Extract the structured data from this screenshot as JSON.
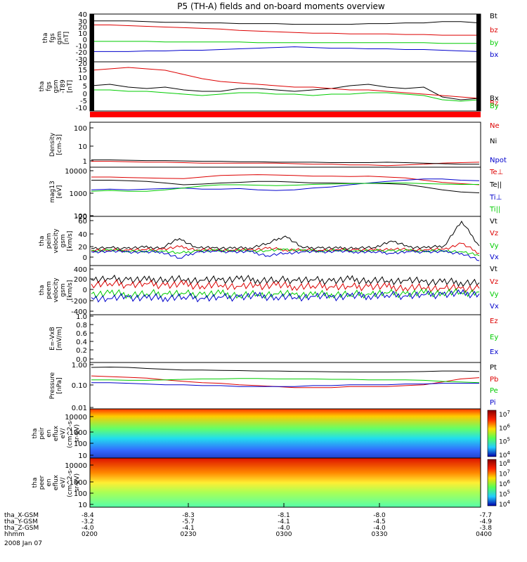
{
  "title": "P5 (TH-A) fields and on-board moments overview",
  "colors": {
    "black": "#000000",
    "red": "#dd0000",
    "green": "#00cc00",
    "blue": "#0000cc",
    "red_bar": "#ff0000"
  },
  "chart_data": [
    {
      "type": "line",
      "ylabel": [
        "tha",
        "fgs",
        "gsm",
        "[nT]"
      ],
      "ylim": [
        -30,
        40
      ],
      "ticks": [
        "40",
        "30",
        "20",
        "10",
        "0",
        "-10",
        "-20",
        "-30"
      ],
      "series": [
        {
          "name": "Bt",
          "color": "#000000",
          "values": [
            30,
            30,
            30,
            29,
            28,
            28,
            27,
            27,
            26,
            26,
            26,
            25,
            25,
            25,
            25,
            26,
            26,
            27,
            27,
            29,
            29,
            27
          ]
        },
        {
          "name": "bz",
          "color": "#dd0000",
          "values": [
            24,
            24,
            23,
            22,
            21,
            20,
            19,
            18,
            16,
            15,
            14,
            13,
            12,
            12,
            11,
            11,
            11,
            10,
            10,
            9,
            9,
            9
          ]
        },
        {
          "name": "by",
          "color": "#00cc00",
          "values": [
            0,
            0,
            0,
            0,
            -1,
            -1,
            -1,
            -1,
            -1,
            -2,
            -2,
            -2,
            -2,
            -2,
            -2,
            -2,
            -2,
            -2,
            -2,
            -3,
            -3,
            -3
          ]
        },
        {
          "name": "bx",
          "color": "#0000cc",
          "values": [
            -15,
            -15,
            -15,
            -14,
            -14,
            -13,
            -13,
            -12,
            -11,
            -10,
            -9,
            -8,
            -9,
            -10,
            -10,
            -11,
            -11,
            -12,
            -12,
            -13,
            -14,
            -15
          ]
        }
      ]
    },
    {
      "type": "line",
      "ylabel": [
        "tha",
        "fgs",
        "gsm",
        "-T89",
        "[nT]"
      ],
      "ylim": [
        -15,
        20
      ],
      "ticks": [
        "20",
        "15",
        "10",
        "5",
        "0",
        "-5",
        "-10"
      ],
      "series": [
        {
          "name": "Bx",
          "color": "#000000",
          "values": [
            3,
            4,
            2,
            1,
            2,
            0,
            -1,
            -1,
            1,
            1,
            0,
            -1,
            0,
            1,
            3,
            4,
            2,
            1,
            2,
            -5,
            -7,
            -6
          ]
        },
        {
          "name": "Bz",
          "color": "#dd0000",
          "values": [
            14,
            15,
            16,
            15,
            14,
            11,
            8,
            6,
            5,
            4,
            3,
            2,
            2,
            1,
            0,
            0,
            -1,
            -2,
            -3,
            -4,
            -5,
            -6
          ]
        },
        {
          "name": "By",
          "color": "#00cc00",
          "values": [
            0,
            0,
            -1,
            -1,
            -2,
            -3,
            -4,
            -3,
            -2,
            -2,
            -3,
            -3,
            -4,
            -3,
            -3,
            -2,
            -2,
            -3,
            -4,
            -7,
            -8,
            -7
          ]
        }
      ]
    },
    {
      "type": "line",
      "ylabel": [
        "Density",
        "[cm-3]"
      ],
      "ylim": [
        0.4,
        200
      ],
      "log": true,
      "ticks": [
        "100",
        "10",
        "1"
      ],
      "series": [
        {
          "name": "Ne",
          "color": "#dd0000",
          "values": [
            0.9,
            0.9,
            0.85,
            0.8,
            0.8,
            0.75,
            0.7,
            0.7,
            0.7,
            0.7,
            0.7,
            0.65,
            0.6,
            0.6,
            0.55,
            0.55,
            0.5,
            0.55,
            0.6,
            0.7,
            0.75,
            0.8
          ]
        },
        {
          "name": "Ni",
          "color": "#000000",
          "values": [
            1.1,
            1.1,
            1.05,
            1.0,
            1.0,
            0.95,
            0.9,
            0.9,
            0.85,
            0.85,
            0.8,
            0.8,
            0.8,
            0.75,
            0.75,
            0.75,
            0.8,
            0.75,
            0.7,
            0.65,
            0.6,
            0.6
          ]
        },
        {
          "name": "Npot",
          "color": "#0000cc",
          "values": []
        }
      ]
    },
    {
      "type": "line",
      "ylabel": [
        "mag13",
        "[eV]"
      ],
      "ylim": [
        100,
        15000
      ],
      "log": true,
      "ticks": [
        "10000",
        "1000",
        "100"
      ],
      "series": [
        {
          "name": "Te⊥",
          "color": "#dd0000",
          "values": [
            5500,
            5500,
            5200,
            5000,
            4800,
            4700,
            5500,
            6500,
            6800,
            7000,
            6800,
            6500,
            6000,
            6000,
            5800,
            6000,
            5500,
            5000,
            4000,
            3200,
            2800,
            2500
          ]
        },
        {
          "name": "Te||",
          "color": "#000000",
          "values": [
            4000,
            4000,
            3800,
            3500,
            3000,
            2500,
            2700,
            3000,
            3200,
            3500,
            3500,
            3300,
            3000,
            3000,
            2900,
            2900,
            2800,
            2600,
            2000,
            1500,
            1200,
            1100
          ]
        },
        {
          "name": "Ti⊥",
          "color": "#0000cc",
          "values": [
            1500,
            1600,
            1500,
            1600,
            1700,
            1800,
            1600,
            1600,
            1700,
            1500,
            1400,
            1500,
            1800,
            2000,
            2500,
            3000,
            3500,
            4000,
            4500,
            4500,
            4000,
            3800
          ]
        },
        {
          "name": "Ti||",
          "color": "#00cc00",
          "values": [
            1300,
            1400,
            1300,
            1300,
            1500,
            1800,
            2200,
            2500,
            2500,
            2400,
            2300,
            2400,
            2600,
            2700,
            2800,
            2900,
            3000,
            3000,
            2800,
            2700,
            2600,
            2600
          ]
        }
      ]
    },
    {
      "type": "line",
      "ylabel": [
        "tha",
        "peim",
        "velocity",
        "gsm",
        "[km/s]"
      ],
      "ylim": [
        -30,
        70
      ],
      "ticks": [
        "60",
        "40",
        "20",
        "0",
        "-20"
      ],
      "series": [
        {
          "name": "Vt",
          "color": "#000000",
          "values": [
            5,
            6,
            5,
            7,
            6,
            25,
            6,
            6,
            5,
            6,
            15,
            30,
            6,
            6,
            5,
            6,
            6,
            20,
            8,
            6,
            10,
            60,
            10
          ]
        },
        {
          "name": "Vz",
          "color": "#dd0000",
          "values": [
            2,
            1,
            2,
            2,
            3,
            8,
            2,
            2,
            1,
            2,
            5,
            2,
            2,
            1,
            2,
            2,
            1,
            4,
            2,
            2,
            3,
            15,
            -5
          ]
        },
        {
          "name": "Vy",
          "color": "#00cc00",
          "values": [
            0,
            1,
            0,
            -1,
            0,
            -5,
            0,
            0,
            1,
            0,
            0,
            3,
            0,
            0,
            1,
            0,
            0,
            0,
            0,
            0,
            0,
            -2,
            -10
          ]
        },
        {
          "name": "Vx",
          "color": "#0000cc",
          "values": [
            -2,
            -1,
            -2,
            -3,
            -2,
            -15,
            -2,
            -1,
            -2,
            -2,
            -10,
            -5,
            -2,
            -2,
            -1,
            -2,
            -2,
            -5,
            -2,
            -2,
            -2,
            -5,
            -20
          ]
        }
      ]
    },
    {
      "type": "line",
      "ylabel": [
        "tha",
        "peem",
        "velocity",
        "gsm",
        "[km/s]"
      ],
      "ylim": [
        -400,
        400
      ],
      "ticks": [
        "400",
        "200",
        "0",
        "-200",
        "-400"
      ],
      "series": [
        {
          "name": "Vt",
          "color": "#000000",
          "values": [
            170,
            180,
            170,
            160,
            180,
            170,
            160,
            170,
            180,
            170,
            160,
            170,
            160,
            150,
            170,
            160,
            150,
            160,
            140,
            130,
            130,
            120
          ]
        },
        {
          "name": "Vz",
          "color": "#dd0000",
          "values": [
            100,
            110,
            90,
            100,
            80,
            90,
            70,
            80,
            60,
            70,
            80,
            60,
            70,
            60,
            50,
            60,
            50,
            40,
            40,
            30,
            30,
            30
          ]
        },
        {
          "name": "Vy",
          "color": "#00cc00",
          "values": [
            -60,
            -50,
            -70,
            -60,
            -50,
            -60,
            -70,
            -60,
            -80,
            -70,
            -60,
            -70,
            -80,
            -60,
            -70,
            -60,
            -50,
            -60,
            -50,
            -40,
            -40,
            -30
          ]
        },
        {
          "name": "Vx",
          "color": "#0000cc",
          "values": [
            -120,
            -140,
            -110,
            -130,
            -120,
            -110,
            -130,
            -120,
            -110,
            -100,
            -110,
            -120,
            -100,
            -110,
            -100,
            -90,
            -80,
            -90,
            -80,
            -70,
            -60,
            -60
          ]
        }
      ]
    },
    {
      "type": "line",
      "ylabel": [
        "E=-VxB",
        "[mV/m]"
      ],
      "ylim": [
        0,
        1
      ],
      "ticks": [
        "1.0",
        "0.8",
        "0.6",
        "0.4",
        "0.2",
        "0.0"
      ],
      "series": [
        {
          "name": "Ez",
          "color": "#dd0000",
          "values": []
        },
        {
          "name": "Ey",
          "color": "#00cc00",
          "values": []
        },
        {
          "name": "Ex",
          "color": "#0000cc",
          "values": []
        }
      ]
    },
    {
      "type": "line",
      "ylabel": [
        "Pressure",
        "[nPa]"
      ],
      "ylim": [
        0.01,
        1.2
      ],
      "log": true,
      "ticks": [
        "1.00",
        "0.10",
        "0.01"
      ],
      "series": [
        {
          "name": "Pt",
          "color": "#000000",
          "values": [
            0.72,
            0.75,
            0.72,
            0.65,
            0.6,
            0.55,
            0.55,
            0.53,
            0.52,
            0.5,
            0.5,
            0.48,
            0.47,
            0.46,
            0.45,
            0.45,
            0.45,
            0.46,
            0.47,
            0.5,
            0.5,
            0.47
          ]
        },
        {
          "name": "Pb",
          "color": "#dd0000",
          "values": [
            0.3,
            0.28,
            0.26,
            0.24,
            0.2,
            0.17,
            0.15,
            0.14,
            0.12,
            0.11,
            0.1,
            0.09,
            0.09,
            0.09,
            0.1,
            0.1,
            0.1,
            0.11,
            0.12,
            0.16,
            0.22,
            0.25
          ]
        },
        {
          "name": "Pe",
          "color": "#00cc00",
          "values": [
            0.2,
            0.2,
            0.19,
            0.19,
            0.2,
            0.21,
            0.22,
            0.22,
            0.23,
            0.23,
            0.22,
            0.22,
            0.22,
            0.21,
            0.21,
            0.2,
            0.2,
            0.2,
            0.19,
            0.17,
            0.16,
            0.15
          ]
        },
        {
          "name": "Pi",
          "color": "#0000cc",
          "values": [
            0.15,
            0.15,
            0.14,
            0.13,
            0.12,
            0.12,
            0.11,
            0.11,
            0.1,
            0.1,
            0.1,
            0.1,
            0.11,
            0.11,
            0.12,
            0.12,
            0.12,
            0.13,
            0.13,
            0.14,
            0.14,
            0.14
          ]
        }
      ]
    },
    {
      "type": "heatmap",
      "ylabel": [
        "tha",
        "peir",
        "en",
        "eflux",
        "eV/",
        "(cm^2-s-",
        "sr-eV)"
      ],
      "ylim": [
        8,
        20000
      ],
      "ticks": [
        "10000",
        "1000",
        "100",
        "10"
      ],
      "colorbar_ticks": [
        "10^7",
        "10^6",
        "10^5",
        "10^4"
      ]
    },
    {
      "type": "heatmap",
      "ylabel": [
        "tha",
        "peer",
        "en",
        "eflux",
        "eV/",
        "(cm^2-s-",
        "sr-eV)"
      ],
      "ylim": [
        8,
        20000
      ],
      "ticks": [
        "10000",
        "1000",
        "100",
        "10"
      ],
      "colorbar_ticks": [
        "10^8",
        "10^7",
        "10^6",
        "10^5",
        "10^4"
      ]
    }
  ],
  "xaxis": {
    "rows": [
      {
        "label": "tha_X-GSM",
        "values": [
          "-8.4",
          "-8.3",
          "-8.1",
          "-8.0",
          "-7.7"
        ]
      },
      {
        "label": "tha_Y-GSM",
        "values": [
          "-3.2",
          "-5.7",
          "-4.1",
          "-4.5",
          "-4.9"
        ]
      },
      {
        "label": "tha_Z-GSM",
        "values": [
          "-4.0",
          "-4.1",
          "-4.0",
          "-4.0",
          "-3.8"
        ]
      },
      {
        "label": "hhmm",
        "values": [
          "0200",
          "0230",
          "0300",
          "0330",
          "0400"
        ]
      }
    ],
    "date": "2008 Jan 07"
  }
}
